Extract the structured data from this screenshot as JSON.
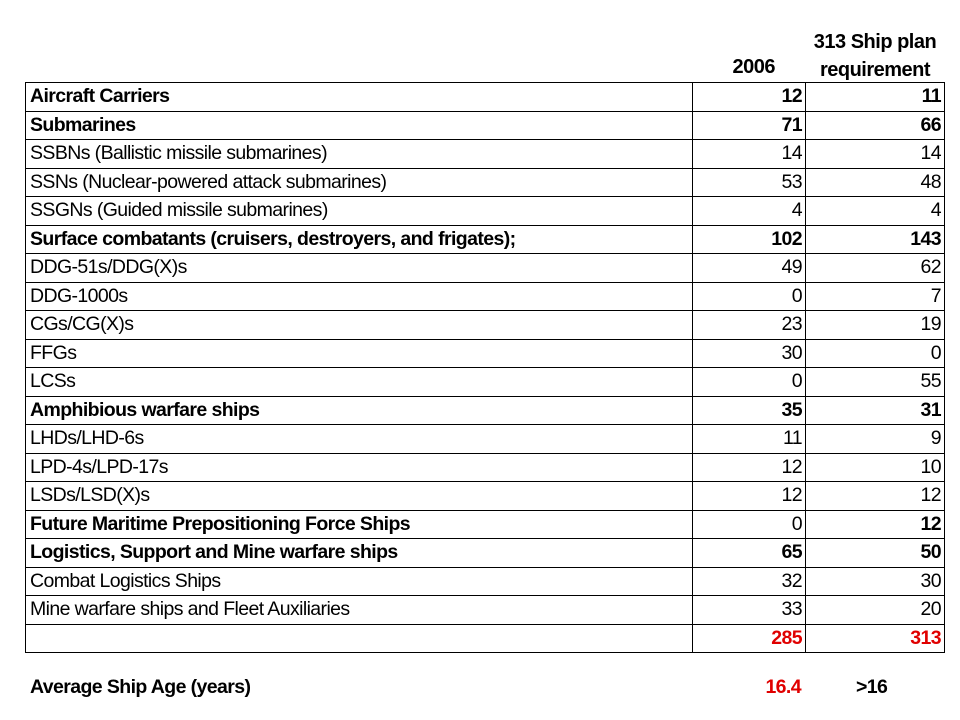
{
  "header": {
    "col_2006": "2006",
    "col_313_line1": "313 Ship plan",
    "col_313_line2": "requirement"
  },
  "rows": [
    {
      "label": "Aircraft Carriers",
      "v2006": "12",
      "v313": "11",
      "bold": true
    },
    {
      "label": "Submarines",
      "v2006": "71",
      "v313": "66",
      "bold": true
    },
    {
      "label": "SSBNs (Ballistic missile submarines)",
      "v2006": "14",
      "v313": "14",
      "bold": false
    },
    {
      "label": "SSNs (Nuclear-powered attack submarines)",
      "v2006": "53",
      "v313": "48",
      "bold": false
    },
    {
      "label": "SSGNs (Guided missile submarines)",
      "v2006": "4",
      "v313": "4",
      "bold": false
    },
    {
      "label": "Surface combatants (cruisers, destroyers, and frigates);",
      "v2006": "102",
      "v313": "143",
      "bold": true
    },
    {
      "label": "DDG-51s/DDG(X)s",
      "v2006": "49",
      "v313": "62",
      "bold": false
    },
    {
      "label": "DDG-1000s",
      "v2006": "0",
      "v313": "7",
      "bold": false
    },
    {
      "label": "CGs/CG(X)s",
      "v2006": "23",
      "v313": "19",
      "bold": false
    },
    {
      "label": "FFGs",
      "v2006": "30",
      "v313": "0",
      "bold": false
    },
    {
      "label": "LCSs",
      "v2006": "0",
      "v313": "55",
      "bold": false
    },
    {
      "label": "Amphibious warfare ships",
      "v2006": "35",
      "v313": "31",
      "bold": true
    },
    {
      "label": "LHDs/LHD-6s",
      "v2006": "11",
      "v313": "9",
      "bold": false
    },
    {
      "label": "LPD-4s/LPD-17s",
      "v2006": "12",
      "v313": "10",
      "bold": false
    },
    {
      "label": "LSDs/LSD(X)s",
      "v2006": "12",
      "v313": "12",
      "bold": false
    },
    {
      "label": "Future Maritime Prepositioning Force Ships",
      "v2006": "0",
      "v313": "12",
      "bold": true,
      "v2006_bold": false
    },
    {
      "label": "Logistics, Support and Mine warfare ships",
      "v2006": "65",
      "v313": "50",
      "bold": true
    },
    {
      "label": "Combat Logistics Ships",
      "v2006": "32",
      "v313": "30",
      "bold": false
    },
    {
      "label": "Mine warfare ships and Fleet Auxiliaries",
      "v2006": "33",
      "v313": "20",
      "bold": false
    }
  ],
  "total": {
    "label": "",
    "v2006": "285",
    "v313": "313"
  },
  "footer": {
    "label": "Average Ship Age (years)",
    "v2006": "16.4",
    "v313": ">16"
  },
  "colors": {
    "total_text": "#e00000",
    "text": "#000000",
    "border": "#000000"
  }
}
